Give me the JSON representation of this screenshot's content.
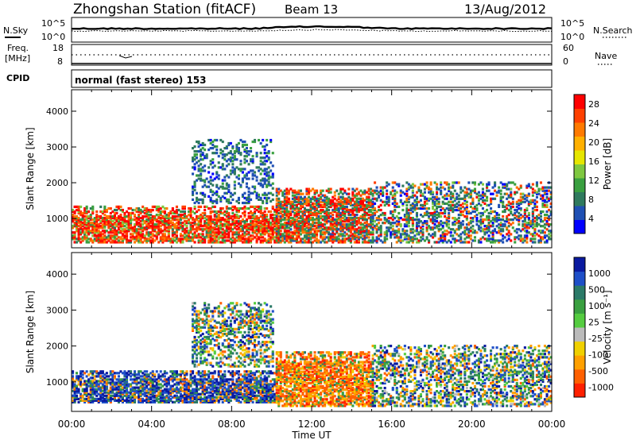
{
  "header": {
    "station": "Zhongshan Station (fitACF)",
    "beam": "Beam 13",
    "date": "13/Aug/2012"
  },
  "aux_panels": {
    "nsky_label": "N.Sky",
    "nsearch_label": "N.Search",
    "noise_ticks_left": [
      "10^5",
      "10^0"
    ],
    "noise_ticks_right": [
      "10^5",
      "10^0"
    ],
    "freq_label_1": "Freq.",
    "freq_label_2": "[MHz]",
    "freq_ticks": [
      "18",
      "8"
    ],
    "nave_label": "Nave",
    "nave_ticks": [
      "60",
      "0"
    ],
    "cpid_label": "CPID",
    "cpid_text": "normal (fast stereo) 153"
  },
  "chart_data": [
    {
      "type": "heatmap",
      "title": "",
      "quantity": "Power",
      "ylabel": "Slant Range [km]",
      "xlabel": "Time UT",
      "xlim": [
        "00:00",
        "24:00"
      ],
      "ylim": [
        180,
        4600
      ],
      "x_ticks": [
        "00:00",
        "04:00",
        "08:00",
        "12:00",
        "16:00",
        "20:00",
        "00:00"
      ],
      "y_ticks": [
        "1000",
        "2000",
        "3000",
        "4000"
      ],
      "colorbar": {
        "label": "Power [dB]",
        "ticks": [
          "4",
          "8",
          "12",
          "16",
          "20",
          "24",
          "28"
        ],
        "colors": [
          "#0000ff",
          "#1f50b4",
          "#2f7a5e",
          "#3aa040",
          "#7fc840",
          "#e6e600",
          "#ffb000",
          "#ff7a00",
          "#ff4000",
          "#ff0000"
        ]
      },
      "echo_regions": [
        {
          "t_start": 0.0,
          "t_end": 10.2,
          "r_low": 300,
          "r_high": 1300,
          "level": "high"
        },
        {
          "t_start": 6.0,
          "t_end": 10.0,
          "r_low": 1400,
          "r_high": 3200,
          "level": "low"
        },
        {
          "t_start": 10.2,
          "t_end": 15.0,
          "r_low": 300,
          "r_high": 1800,
          "level": "medium"
        },
        {
          "t_start": 15.0,
          "t_end": 24.0,
          "r_low": 300,
          "r_high": 2000,
          "level": "mixed"
        }
      ]
    },
    {
      "type": "heatmap",
      "title": "",
      "quantity": "Velocity",
      "ylabel": "Slant Range [km]",
      "xlabel": "Time UT",
      "xlim": [
        "00:00",
        "24:00"
      ],
      "ylim": [
        180,
        4600
      ],
      "x_ticks": [
        "00:00",
        "04:00",
        "08:00",
        "12:00",
        "16:00",
        "20:00",
        "00:00"
      ],
      "y_ticks": [
        "1000",
        "2000",
        "3000",
        "4000"
      ],
      "colorbar": {
        "label": "Velocity [m s⁻¹]",
        "ticks": [
          "1000",
          "500",
          "100",
          "25",
          "-25",
          "-100",
          "-500",
          "-1000"
        ],
        "colors": [
          "#0a1aa0",
          "#1e4fc8",
          "#2b7a68",
          "#3aa040",
          "#55cc40",
          "#bbbbbb",
          "#f0d000",
          "#ffa000",
          "#ff6000",
          "#ff2000"
        ]
      },
      "echo_regions": [
        {
          "t_start": 0.0,
          "t_end": 10.2,
          "r_low": 400,
          "r_high": 1300,
          "level": "toward"
        },
        {
          "t_start": 6.0,
          "t_end": 10.0,
          "r_low": 1400,
          "r_high": 3200,
          "level": "mixed"
        },
        {
          "t_start": 10.2,
          "t_end": 15.0,
          "r_low": 300,
          "r_high": 1800,
          "level": "away"
        },
        {
          "t_start": 15.0,
          "t_end": 24.0,
          "r_low": 300,
          "r_high": 2000,
          "level": "mixed"
        }
      ]
    }
  ],
  "colors": {
    "axis": "#000000",
    "background": "#ffffff"
  }
}
